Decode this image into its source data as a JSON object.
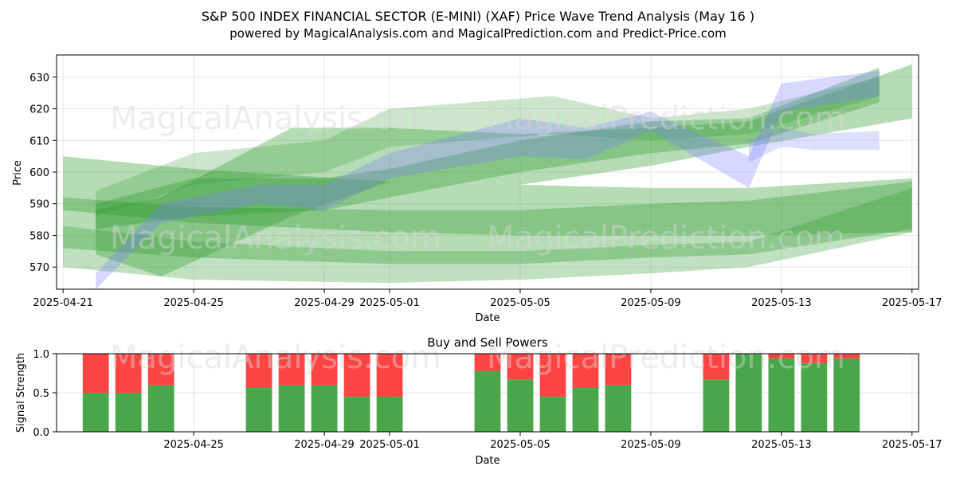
{
  "figure": {
    "title": "S&P 500 INDEX FINANCIAL SECTOR (E-MINI) (XAF) Price Wave Trend Analysis (May 16 )",
    "subtitle": "powered by MagicalAnalysis.com and MagicalPrediction.com and Predict-Price.com",
    "watermarks": [
      "MagicalAnalysis.com",
      "MagicalPrediction.com",
      "MagicalAnalysis.com",
      "MagicalPrediction.com",
      "MagicalAnalysis.com",
      "MagicalPrediction.com"
    ]
  },
  "chart_data": [
    {
      "type": "area",
      "title": "",
      "xlabel": "Date",
      "ylabel": "Price",
      "xlim": [
        "2025-04-20.8",
        "2025-05-17.2"
      ],
      "ylim": [
        563,
        637
      ],
      "x_ticks": [
        "2025-04-21",
        "2025-04-25",
        "2025-04-29",
        "2025-05-01",
        "2025-05-05",
        "2025-05-09",
        "2025-05-13",
        "2025-05-17"
      ],
      "y_ticks": [
        570,
        580,
        590,
        600,
        610,
        620,
        630
      ],
      "grid": true,
      "colors": {
        "green": "#2e9a2e",
        "blue": "#7b7bff"
      },
      "bands": [
        {
          "color": "green",
          "opacity": 0.35,
          "x": [
            "2025-04-21",
            "2025-04-25",
            "2025-05-01",
            "2025-05-05",
            "2025-05-09",
            "2025-05-12",
            "2025-05-17"
          ],
          "upper": [
            605,
            601,
            597,
            596,
            595,
            595,
            598
          ],
          "lower": [
            588,
            584,
            581,
            580,
            580,
            580,
            581
          ]
        },
        {
          "color": "green",
          "opacity": 0.35,
          "x": [
            "2025-04-21",
            "2025-04-25",
            "2025-05-01",
            "2025-05-05",
            "2025-05-09",
            "2025-05-12",
            "2025-05-17"
          ],
          "upper": [
            592,
            589,
            588,
            588,
            590,
            591,
            597
          ],
          "lower": [
            576,
            573,
            571,
            571,
            573,
            574,
            582
          ]
        },
        {
          "color": "green",
          "opacity": 0.3,
          "x": [
            "2025-04-21",
            "2025-04-25",
            "2025-05-01",
            "2025-05-05",
            "2025-05-09",
            "2025-05-12",
            "2025-05-17"
          ],
          "upper": [
            583,
            578,
            575,
            575,
            577,
            578,
            595
          ],
          "lower": [
            570,
            566,
            565,
            566,
            568,
            570,
            581
          ]
        },
        {
          "color": "green",
          "opacity": 0.35,
          "x": [
            "2025-04-22",
            "2025-04-24",
            "2025-04-28",
            "2025-05-01",
            "2025-05-05",
            "2025-05-09",
            "2025-05-12",
            "2025-05-17"
          ],
          "upper": [
            588,
            592,
            614,
            614,
            612,
            614,
            616,
            634
          ],
          "lower": [
            574,
            567,
            586,
            597,
            596,
            602,
            608,
            617
          ]
        },
        {
          "color": "green",
          "opacity": 0.35,
          "x": [
            "2025-04-22",
            "2025-04-25",
            "2025-04-29",
            "2025-05-01",
            "2025-05-05",
            "2025-05-09",
            "2025-05-12",
            "2025-05-16"
          ],
          "upper": [
            590,
            598,
            598,
            601,
            610,
            616,
            617,
            633
          ],
          "lower": [
            582,
            586,
            588,
            592,
            600,
            606,
            609,
            622
          ]
        },
        {
          "color": "green",
          "opacity": 0.25,
          "x": [
            "2025-04-22",
            "2025-04-25",
            "2025-04-29",
            "2025-05-01",
            "2025-05-06",
            "2025-05-09",
            "2025-05-12",
            "2025-05-16"
          ],
          "upper": [
            594,
            606,
            610,
            620,
            624,
            617,
            620,
            630
          ],
          "lower": [
            586,
            596,
            600,
            608,
            612,
            610,
            612,
            624
          ]
        },
        {
          "color": "blue",
          "opacity": 0.3,
          "x": [
            "2025-04-22",
            "2025-04-24",
            "2025-04-27",
            "2025-04-29",
            "2025-05-01",
            "2025-05-05",
            "2025-05-07",
            "2025-05-09",
            "2025-05-12",
            "2025-05-13",
            "2025-05-16"
          ],
          "upper": [
            568,
            590,
            596,
            596,
            606,
            617,
            614,
            619,
            605,
            628,
            632
          ],
          "lower": [
            563,
            584,
            590,
            588,
            598,
            605,
            604,
            613,
            595,
            619,
            624
          ]
        },
        {
          "color": "blue",
          "opacity": 0.25,
          "x": [
            "2025-05-12",
            "2025-05-13",
            "2025-05-14",
            "2025-05-16"
          ],
          "upper": [
            610,
            614,
            612,
            613
          ],
          "lower": [
            603,
            608,
            607,
            607
          ]
        }
      ]
    },
    {
      "type": "bar",
      "title": "Buy and Sell Powers",
      "xlabel": "Date",
      "ylabel": "Signal Strength",
      "xlim": [
        "2025-04-20.8",
        "2025-05-17.2"
      ],
      "ylim": [
        0,
        1
      ],
      "x_ticks": [
        "2025-04-25",
        "2025-04-29",
        "2025-05-01",
        "2025-05-05",
        "2025-05-09",
        "2025-05-13",
        "2025-05-17"
      ],
      "y_ticks": [
        "0.0",
        "0.5",
        "1.0"
      ],
      "grid": true,
      "colors": {
        "buy": "#4aa64a",
        "sell": "#ff4444"
      },
      "categories": [
        "2025-04-22",
        "2025-04-23",
        "2025-04-24",
        "2025-04-27",
        "2025-04-28",
        "2025-04-29",
        "2025-04-30",
        "2025-05-01",
        "2025-05-04",
        "2025-05-05",
        "2025-05-06",
        "2025-05-07",
        "2025-05-08",
        "2025-05-11",
        "2025-05-12",
        "2025-05-13",
        "2025-05-14",
        "2025-05-15"
      ],
      "series": [
        {
          "name": "",
          "values": [
            0.5,
            0.5,
            0.6,
            0.56,
            0.6,
            0.6,
            0.45,
            0.45,
            0.78,
            0.67,
            0.45,
            0.56,
            0.6,
            0.67,
            1.0,
            0.94,
            0.88,
            0.94
          ]
        },
        {
          "name": "",
          "values": [
            0.5,
            0.5,
            0.4,
            0.44,
            0.4,
            0.4,
            0.55,
            0.55,
            0.22,
            0.33,
            0.55,
            0.44,
            0.4,
            0.33,
            0.0,
            0.06,
            0.12,
            0.06
          ]
        }
      ]
    }
  ]
}
